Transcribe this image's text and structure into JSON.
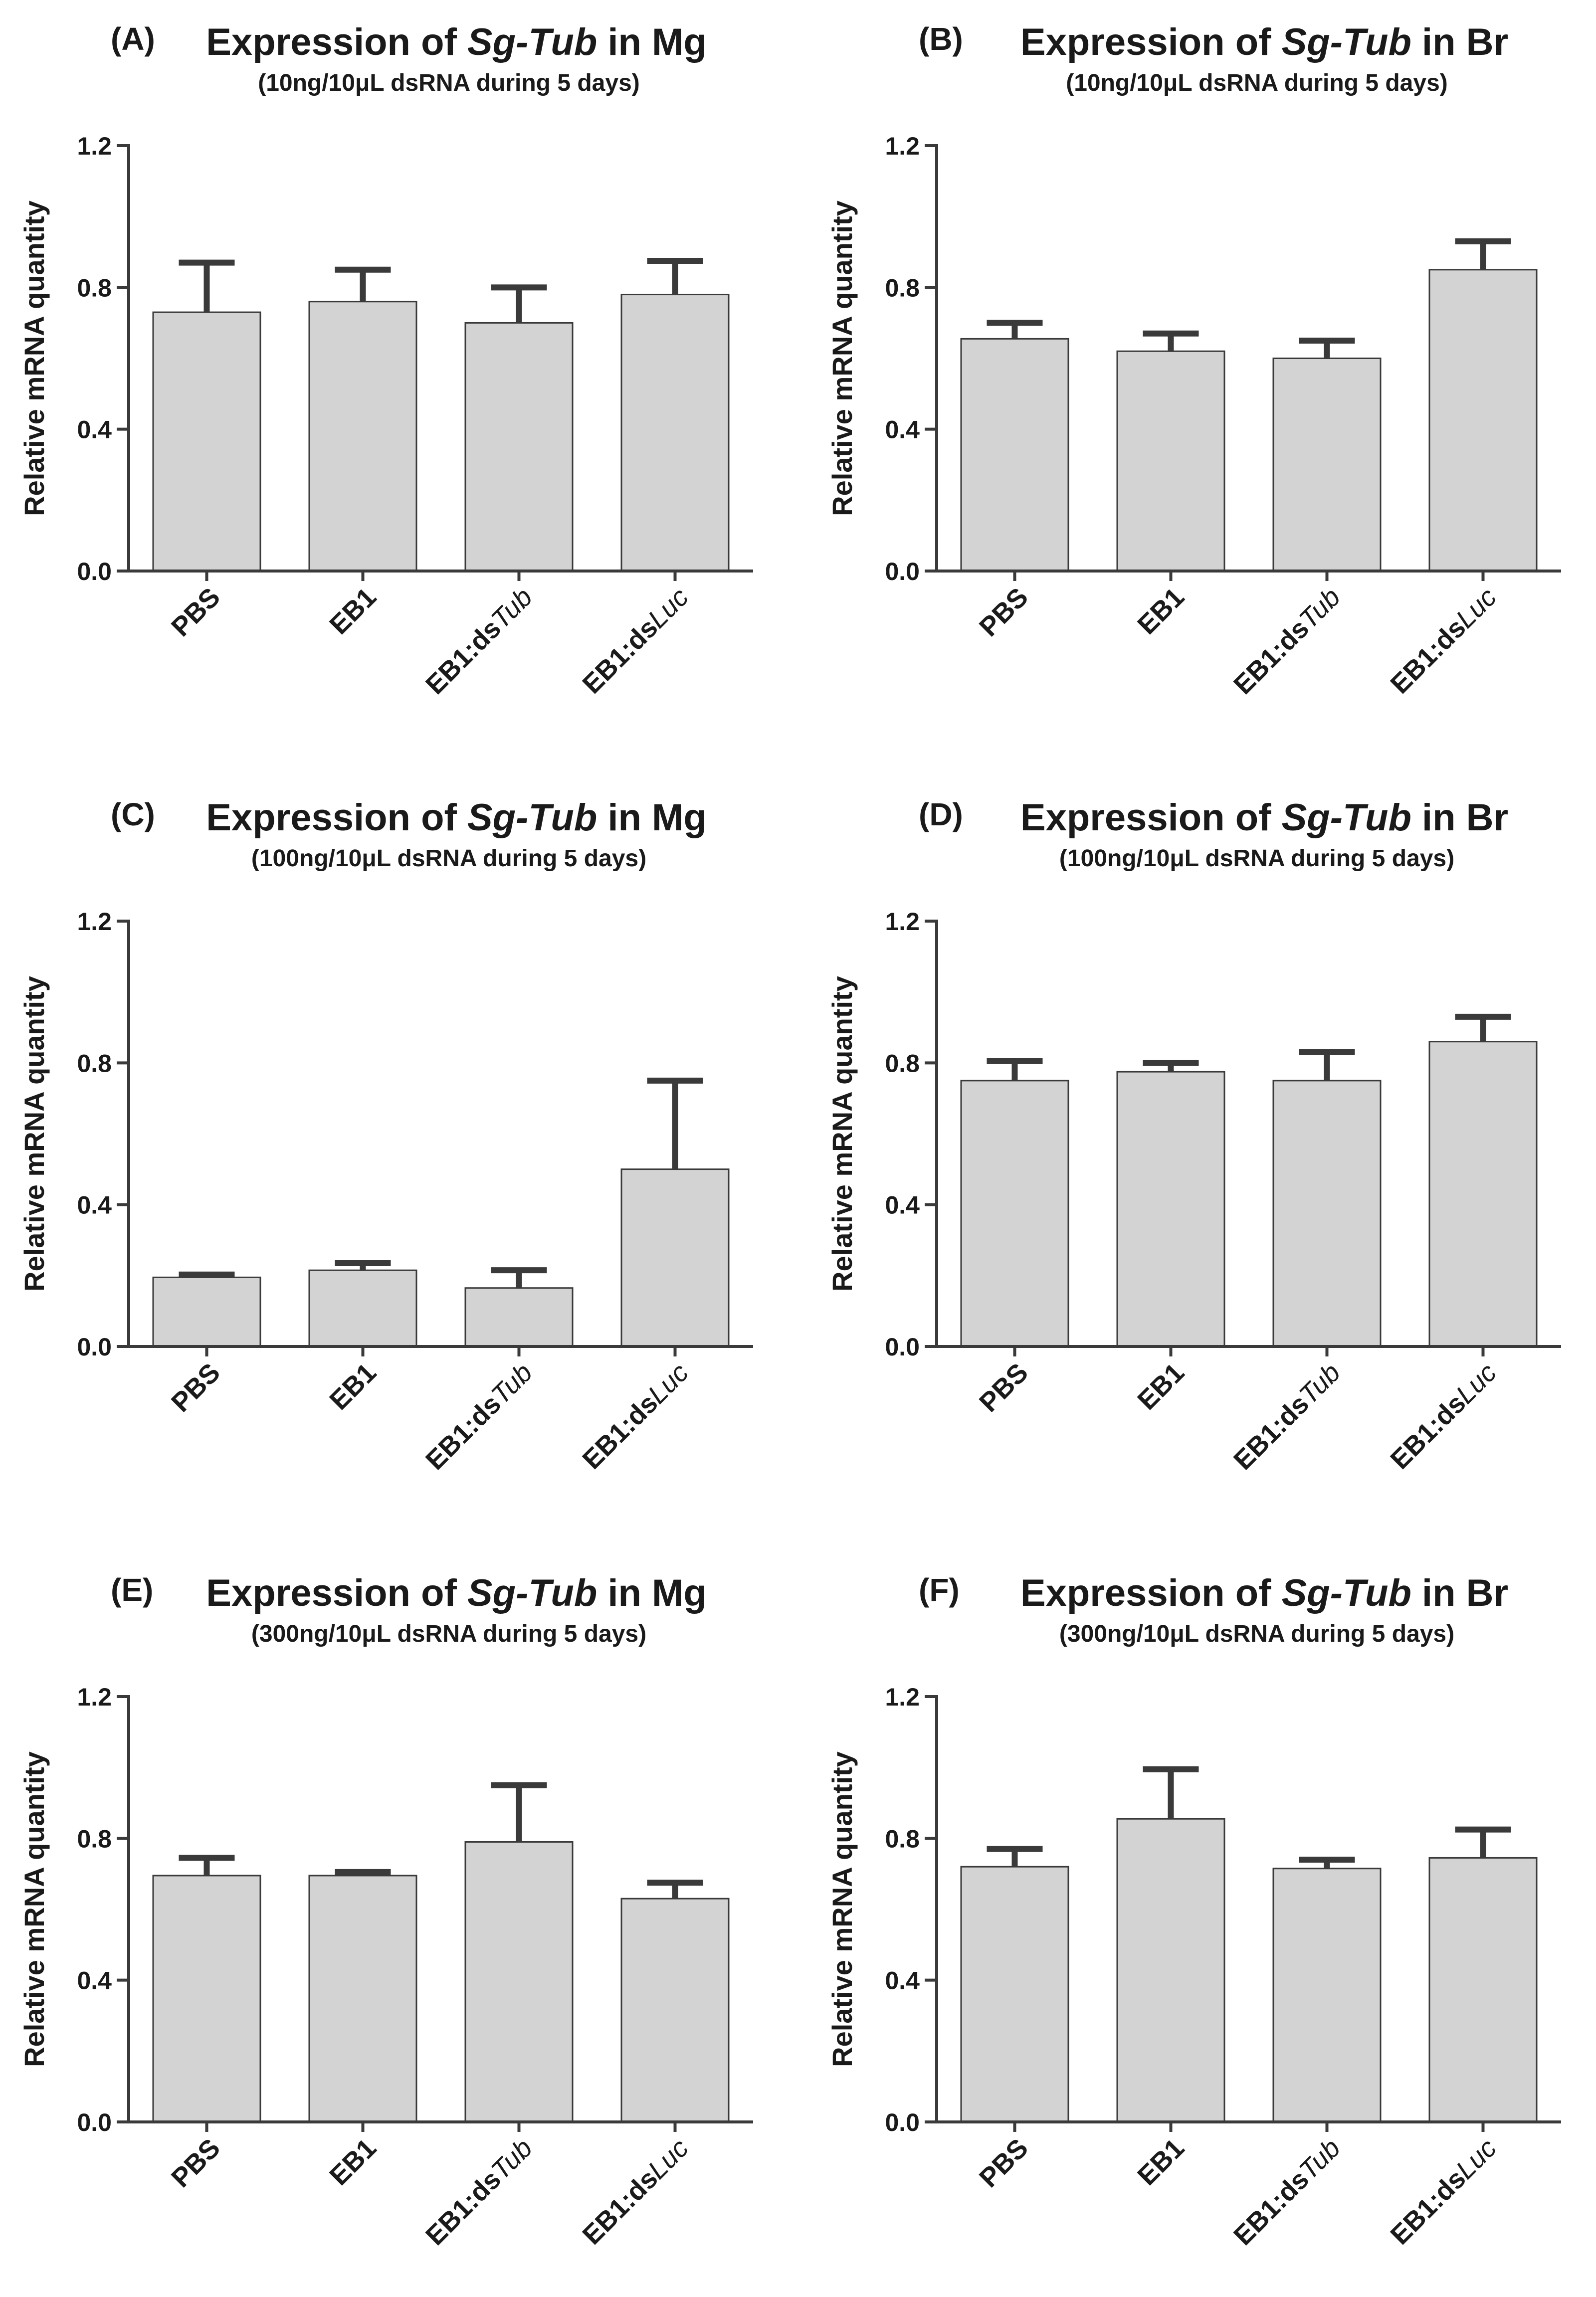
{
  "figure": {
    "unit_line": "ng/10μL dsRNA during 5 days"
  },
  "chart_data": [
    {
      "panel": "(A)",
      "type": "bar",
      "title_prefix": "Expression of ",
      "title_gene": "Sg-Tub",
      "title_suffix": " in Mg",
      "subtitle": "(10ng/10μL dsRNA during 5 days)",
      "ylabel": "Relative mRNA quantity",
      "ylim": [
        0,
        1.2
      ],
      "yticks": [
        "0.0",
        "0.4",
        "0.8",
        "1.2"
      ],
      "categories": [
        {
          "main": "PBS",
          "italic": ""
        },
        {
          "main": "EB1",
          "italic": ""
        },
        {
          "main": "EB1:ds",
          "italic": "Tub"
        },
        {
          "main": "EB1:ds",
          "italic": "Luc"
        }
      ],
      "values": [
        0.73,
        0.76,
        0.7,
        0.78
      ],
      "errors": [
        0.14,
        0.09,
        0.1,
        0.095
      ]
    },
    {
      "panel": "(B)",
      "type": "bar",
      "title_prefix": "Expression of ",
      "title_gene": "Sg-Tub",
      "title_suffix": " in Br",
      "subtitle": "(10ng/10μL dsRNA during 5 days)",
      "ylabel": "Relative mRNA quantity",
      "ylim": [
        0,
        1.2
      ],
      "yticks": [
        "0.0",
        "0.4",
        "0.8",
        "1.2"
      ],
      "categories": [
        {
          "main": "PBS",
          "italic": ""
        },
        {
          "main": "EB1",
          "italic": ""
        },
        {
          "main": "EB1:ds",
          "italic": "Tub"
        },
        {
          "main": "EB1:ds",
          "italic": "Luc"
        }
      ],
      "values": [
        0.655,
        0.62,
        0.6,
        0.85
      ],
      "errors": [
        0.045,
        0.05,
        0.05,
        0.08
      ]
    },
    {
      "panel": "(C)",
      "type": "bar",
      "title_prefix": "Expression of ",
      "title_gene": "Sg-Tub",
      "title_suffix": " in Mg",
      "subtitle": "(100ng/10μL dsRNA during 5 days)",
      "ylabel": "Relative mRNA quantity",
      "ylim": [
        0,
        1.2
      ],
      "yticks": [
        "0.0",
        "0.4",
        "0.8",
        "1.2"
      ],
      "categories": [
        {
          "main": "PBS",
          "italic": ""
        },
        {
          "main": "EB1",
          "italic": ""
        },
        {
          "main": "EB1:ds",
          "italic": "Tub"
        },
        {
          "main": "EB1:ds",
          "italic": "Luc"
        }
      ],
      "values": [
        0.195,
        0.215,
        0.165,
        0.5
      ],
      "errors": [
        0.008,
        0.02,
        0.05,
        0.25
      ]
    },
    {
      "panel": "(D)",
      "type": "bar",
      "title_prefix": "Expression of ",
      "title_gene": "Sg-Tub",
      "title_suffix": " in Br",
      "subtitle": "(100ng/10μL dsRNA during 5 days)",
      "ylabel": "Relative mRNA quantity",
      "ylim": [
        0,
        1.2
      ],
      "yticks": [
        "0.0",
        "0.4",
        "0.8",
        "1.2"
      ],
      "categories": [
        {
          "main": "PBS",
          "italic": ""
        },
        {
          "main": "EB1",
          "italic": ""
        },
        {
          "main": "EB1:ds",
          "italic": "Tub"
        },
        {
          "main": "EB1:ds",
          "italic": "Luc"
        }
      ],
      "values": [
        0.75,
        0.775,
        0.75,
        0.86
      ],
      "errors": [
        0.055,
        0.025,
        0.08,
        0.07
      ]
    },
    {
      "panel": "(E)",
      "type": "bar",
      "title_prefix": "Expression of ",
      "title_gene": "Sg-Tub",
      "title_suffix": " in Mg",
      "subtitle": "(300ng/10μL dsRNA during 5 days)",
      "ylabel": "Relative mRNA quantity",
      "ylim": [
        0,
        1.2
      ],
      "yticks": [
        "0.0",
        "0.4",
        "0.8",
        "1.2"
      ],
      "categories": [
        {
          "main": "PBS",
          "italic": ""
        },
        {
          "main": "EB1",
          "italic": ""
        },
        {
          "main": "EB1:ds",
          "italic": "Tub"
        },
        {
          "main": "EB1:ds",
          "italic": "Luc"
        }
      ],
      "values": [
        0.695,
        0.695,
        0.79,
        0.63
      ],
      "errors": [
        0.05,
        0.01,
        0.16,
        0.045
      ]
    },
    {
      "panel": "(F)",
      "type": "bar",
      "title_prefix": "Expression of ",
      "title_gene": "Sg-Tub",
      "title_suffix": " in Br",
      "subtitle": "(300ng/10μL dsRNA during 5 days)",
      "ylabel": "Relative mRNA quantity",
      "ylim": [
        0,
        1.2
      ],
      "yticks": [
        "0.0",
        "0.4",
        "0.8",
        "1.2"
      ],
      "categories": [
        {
          "main": "PBS",
          "italic": ""
        },
        {
          "main": "EB1",
          "italic": ""
        },
        {
          "main": "EB1:ds",
          "italic": "Tub"
        },
        {
          "main": "EB1:ds",
          "italic": "Luc"
        }
      ],
      "values": [
        0.72,
        0.855,
        0.715,
        0.745
      ],
      "errors": [
        0.05,
        0.14,
        0.025,
        0.08
      ]
    }
  ]
}
